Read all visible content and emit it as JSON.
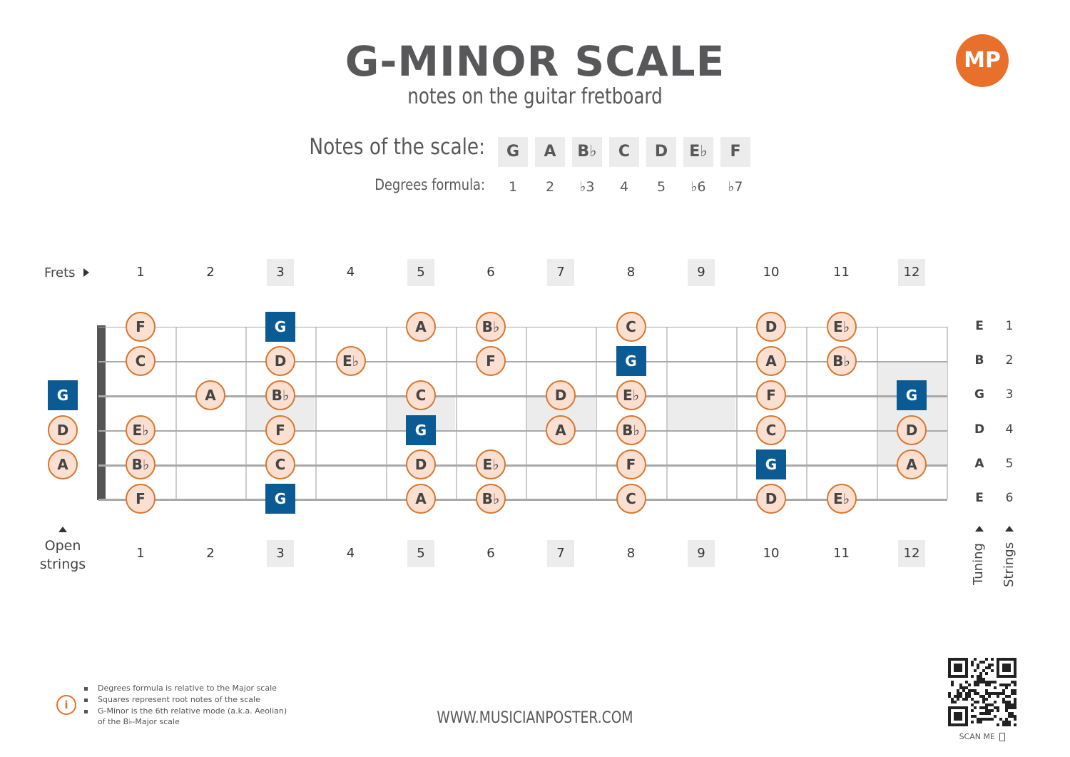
{
  "header": {
    "title": "G-MINOR SCALE",
    "subtitle": "notes on the guitar fretboard",
    "logo_text": "MP"
  },
  "scale": {
    "notes_label": "Notes of the scale:",
    "degrees_label": "Degrees formula:",
    "notes": [
      "G",
      "A",
      "B♭",
      "C",
      "D",
      "E♭",
      "F"
    ],
    "degrees": [
      "1",
      "2",
      "♭3",
      "4",
      "5",
      "♭6",
      "♭7"
    ]
  },
  "fretboard": {
    "frets_label": "Frets",
    "fret_numbers": [
      "1",
      "2",
      "3",
      "4",
      "5",
      "6",
      "7",
      "8",
      "9",
      "10",
      "11",
      "12"
    ],
    "highlighted_frets": [
      3,
      5,
      7,
      9,
      12
    ],
    "open_strings_label": [
      "Open",
      "strings"
    ],
    "tuning_label": "Tuning",
    "strings_label": "Strings",
    "tuning": [
      "E",
      "B",
      "G",
      "D",
      "A",
      "E"
    ],
    "string_numbers": [
      "1",
      "2",
      "3",
      "4",
      "5",
      "6"
    ],
    "root_color": "#0a5a94",
    "note_color": "#fbe0d2",
    "note_border_color": "#d9762d",
    "open_notes": [
      {
        "string": 3,
        "note": "G",
        "root": true
      },
      {
        "string": 4,
        "note": "D",
        "root": false
      },
      {
        "string": 5,
        "note": "A",
        "root": false
      }
    ],
    "notes": [
      {
        "string": 1,
        "fret": 1,
        "note": "F",
        "root": false
      },
      {
        "string": 1,
        "fret": 3,
        "note": "G",
        "root": true
      },
      {
        "string": 1,
        "fret": 5,
        "note": "A",
        "root": false
      },
      {
        "string": 1,
        "fret": 6,
        "note": "B♭",
        "root": false
      },
      {
        "string": 1,
        "fret": 8,
        "note": "C",
        "root": false
      },
      {
        "string": 1,
        "fret": 10,
        "note": "D",
        "root": false
      },
      {
        "string": 1,
        "fret": 11,
        "note": "E♭",
        "root": false
      },
      {
        "string": 2,
        "fret": 1,
        "note": "C",
        "root": false
      },
      {
        "string": 2,
        "fret": 3,
        "note": "D",
        "root": false
      },
      {
        "string": 2,
        "fret": 4,
        "note": "E♭",
        "root": false
      },
      {
        "string": 2,
        "fret": 6,
        "note": "F",
        "root": false
      },
      {
        "string": 2,
        "fret": 8,
        "note": "G",
        "root": true
      },
      {
        "string": 2,
        "fret": 10,
        "note": "A",
        "root": false
      },
      {
        "string": 2,
        "fret": 11,
        "note": "B♭",
        "root": false
      },
      {
        "string": 3,
        "fret": 2,
        "note": "A",
        "root": false
      },
      {
        "string": 3,
        "fret": 3,
        "note": "B♭",
        "root": false
      },
      {
        "string": 3,
        "fret": 5,
        "note": "C",
        "root": false
      },
      {
        "string": 3,
        "fret": 7,
        "note": "D",
        "root": false
      },
      {
        "string": 3,
        "fret": 8,
        "note": "E♭",
        "root": false
      },
      {
        "string": 3,
        "fret": 10,
        "note": "F",
        "root": false
      },
      {
        "string": 3,
        "fret": 12,
        "note": "G",
        "root": true
      },
      {
        "string": 4,
        "fret": 1,
        "note": "E♭",
        "root": false
      },
      {
        "string": 4,
        "fret": 3,
        "note": "F",
        "root": false
      },
      {
        "string": 4,
        "fret": 5,
        "note": "G",
        "root": true
      },
      {
        "string": 4,
        "fret": 7,
        "note": "A",
        "root": false
      },
      {
        "string": 4,
        "fret": 8,
        "note": "B♭",
        "root": false
      },
      {
        "string": 4,
        "fret": 10,
        "note": "C",
        "root": false
      },
      {
        "string": 4,
        "fret": 12,
        "note": "D",
        "root": false
      },
      {
        "string": 5,
        "fret": 1,
        "note": "B♭",
        "root": false
      },
      {
        "string": 5,
        "fret": 3,
        "note": "C",
        "root": false
      },
      {
        "string": 5,
        "fret": 5,
        "note": "D",
        "root": false
      },
      {
        "string": 5,
        "fret": 6,
        "note": "E♭",
        "root": false
      },
      {
        "string": 5,
        "fret": 8,
        "note": "F",
        "root": false
      },
      {
        "string": 5,
        "fret": 10,
        "note": "G",
        "root": true
      },
      {
        "string": 5,
        "fret": 12,
        "note": "A",
        "root": false
      },
      {
        "string": 6,
        "fret": 1,
        "note": "F",
        "root": false
      },
      {
        "string": 6,
        "fret": 3,
        "note": "G",
        "root": true
      },
      {
        "string": 6,
        "fret": 5,
        "note": "A",
        "root": false
      },
      {
        "string": 6,
        "fret": 6,
        "note": "B♭",
        "root": false
      },
      {
        "string": 6,
        "fret": 8,
        "note": "C",
        "root": false
      },
      {
        "string": 6,
        "fret": 10,
        "note": "D",
        "root": false
      },
      {
        "string": 6,
        "fret": 11,
        "note": "E♭",
        "root": false
      }
    ]
  },
  "footer": {
    "info_icon": "info-icon",
    "info_lines": [
      "Degrees formula is relative to the Major scale",
      "Squares represent root notes of the scale",
      "G-Minor is the 6th relative mode (a.k.a. Aeolian)",
      "of the B♭-Major scale"
    ],
    "url": "WWW.MUSICIANPOSTER.COM",
    "scan_label": "SCAN ME"
  }
}
